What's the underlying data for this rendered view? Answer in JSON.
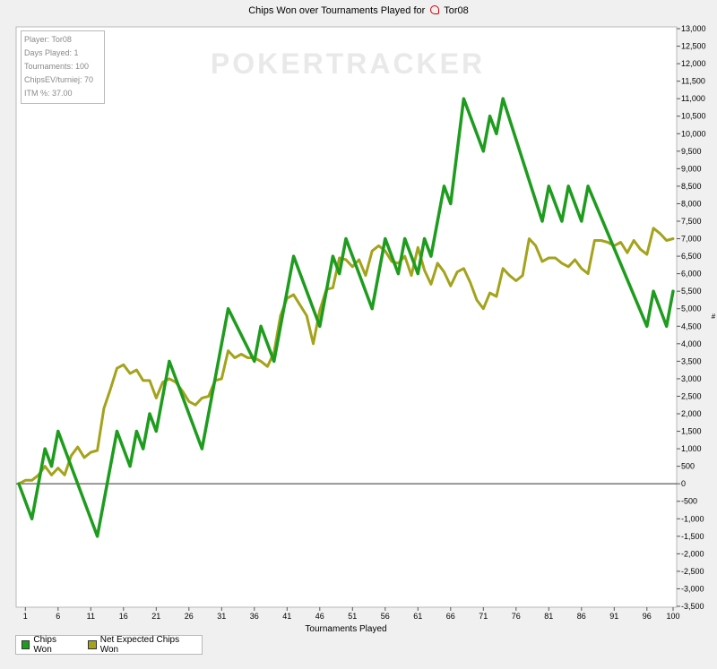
{
  "chart_data": {
    "type": "line",
    "title": "Chips Won over Tournaments Played for",
    "player_name": "Tor08",
    "xlabel": "Tournaments Played",
    "ylabel": "",
    "ylabel_symbol": "#",
    "xlim": [
      0,
      100
    ],
    "ylim": [
      -3500,
      13000
    ],
    "x_ticks": [
      1,
      6,
      11,
      16,
      21,
      26,
      31,
      36,
      41,
      46,
      51,
      56,
      61,
      66,
      71,
      76,
      81,
      86,
      91,
      96,
      100
    ],
    "y_ticks": [
      -3500,
      -3000,
      -2500,
      -2000,
      -1500,
      -1000,
      -500,
      0,
      500,
      1000,
      1500,
      2000,
      2500,
      3000,
      3500,
      4000,
      4500,
      5000,
      5500,
      6000,
      6500,
      7000,
      7500,
      8000,
      8500,
      9000,
      9500,
      10000,
      10500,
      11000,
      11500,
      12000,
      12500,
      13000
    ],
    "grid": false,
    "legend_position": "bottom-left",
    "watermark": "POKERTRACKER",
    "series": [
      {
        "name": "Chips Won",
        "color": "#1e9c1e",
        "points": [
          [
            0,
            0
          ],
          [
            2,
            -1000
          ],
          [
            4,
            1000
          ],
          [
            5,
            500
          ],
          [
            6,
            1500
          ],
          [
            12,
            -1500
          ],
          [
            15,
            1500
          ],
          [
            17,
            500
          ],
          [
            18,
            1500
          ],
          [
            19,
            1000
          ],
          [
            20,
            2000
          ],
          [
            21,
            1500
          ],
          [
            23,
            3500
          ],
          [
            28,
            1000
          ],
          [
            32,
            5000
          ],
          [
            36,
            3500
          ],
          [
            37,
            4500
          ],
          [
            39,
            3500
          ],
          [
            42,
            6500
          ],
          [
            46,
            4500
          ],
          [
            48,
            6500
          ],
          [
            49,
            6000
          ],
          [
            50,
            7000
          ],
          [
            54,
            5000
          ],
          [
            56,
            7000
          ],
          [
            58,
            6000
          ],
          [
            59,
            7000
          ],
          [
            61,
            6000
          ],
          [
            62,
            7000
          ],
          [
            63,
            6500
          ],
          [
            65,
            8500
          ],
          [
            66,
            8000
          ],
          [
            68,
            11000
          ],
          [
            71,
            9500
          ],
          [
            72,
            10500
          ],
          [
            73,
            10000
          ],
          [
            74,
            11000
          ],
          [
            80,
            7500
          ],
          [
            81,
            8500
          ],
          [
            83,
            7500
          ],
          [
            84,
            8500
          ],
          [
            86,
            7500
          ],
          [
            87,
            8500
          ],
          [
            96,
            4500
          ],
          [
            97,
            5500
          ],
          [
            99,
            4500
          ],
          [
            100,
            5500
          ]
        ]
      },
      {
        "name": "Net Expected Chips Won",
        "color": "#a3a31c",
        "points": [
          [
            0,
            0
          ],
          [
            1,
            100
          ],
          [
            2,
            100
          ],
          [
            3,
            250
          ],
          [
            4,
            500
          ],
          [
            5,
            250
          ],
          [
            6,
            450
          ],
          [
            7,
            250
          ],
          [
            8,
            800
          ],
          [
            9,
            1050
          ],
          [
            10,
            750
          ],
          [
            11,
            900
          ],
          [
            12,
            950
          ],
          [
            13,
            2150
          ],
          [
            14,
            2700
          ],
          [
            15,
            3300
          ],
          [
            16,
            3400
          ],
          [
            17,
            3150
          ],
          [
            18,
            3250
          ],
          [
            19,
            2950
          ],
          [
            20,
            2950
          ],
          [
            21,
            2450
          ],
          [
            22,
            2900
          ],
          [
            23,
            3000
          ],
          [
            24,
            2900
          ],
          [
            25,
            2650
          ],
          [
            26,
            2350
          ],
          [
            27,
            2250
          ],
          [
            28,
            2450
          ],
          [
            29,
            2500
          ],
          [
            30,
            2950
          ],
          [
            31,
            3000
          ],
          [
            32,
            3800
          ],
          [
            33,
            3600
          ],
          [
            34,
            3700
          ],
          [
            35,
            3600
          ],
          [
            36,
            3600
          ],
          [
            37,
            3500
          ],
          [
            38,
            3350
          ],
          [
            39,
            3750
          ],
          [
            40,
            4800
          ],
          [
            41,
            5300
          ],
          [
            42,
            5400
          ],
          [
            43,
            5100
          ],
          [
            44,
            4800
          ],
          [
            45,
            4000
          ],
          [
            46,
            4950
          ],
          [
            47,
            5550
          ],
          [
            48,
            5600
          ],
          [
            49,
            6450
          ],
          [
            50,
            6400
          ],
          [
            51,
            6200
          ],
          [
            52,
            6400
          ],
          [
            53,
            5950
          ],
          [
            54,
            6650
          ],
          [
            55,
            6800
          ],
          [
            56,
            6650
          ],
          [
            57,
            6350
          ],
          [
            58,
            6300
          ],
          [
            59,
            6500
          ],
          [
            60,
            5950
          ],
          [
            61,
            6750
          ],
          [
            62,
            6100
          ],
          [
            63,
            5700
          ],
          [
            64,
            6300
          ],
          [
            65,
            6050
          ],
          [
            66,
            5650
          ],
          [
            67,
            6050
          ],
          [
            68,
            6150
          ],
          [
            69,
            5750
          ],
          [
            70,
            5250
          ],
          [
            71,
            5000
          ],
          [
            72,
            5450
          ],
          [
            73,
            5350
          ],
          [
            74,
            6150
          ],
          [
            75,
            5950
          ],
          [
            76,
            5800
          ],
          [
            77,
            5950
          ],
          [
            78,
            7000
          ],
          [
            79,
            6800
          ],
          [
            80,
            6350
          ],
          [
            81,
            6450
          ],
          [
            82,
            6450
          ],
          [
            83,
            6300
          ],
          [
            84,
            6200
          ],
          [
            85,
            6400
          ],
          [
            86,
            6150
          ],
          [
            87,
            6000
          ],
          [
            88,
            6950
          ],
          [
            89,
            6950
          ],
          [
            90,
            6900
          ],
          [
            91,
            6800
          ],
          [
            92,
            6900
          ],
          [
            93,
            6600
          ],
          [
            94,
            6950
          ],
          [
            95,
            6700
          ],
          [
            96,
            6550
          ],
          [
            97,
            7300
          ],
          [
            98,
            7150
          ],
          [
            99,
            6950
          ],
          [
            100,
            7000
          ]
        ]
      }
    ]
  },
  "info_box": [
    "Player: Tor08",
    "Days Played: 1",
    "Tournaments: 100",
    "ChipsEV/turniej: 70",
    "ITM %: 37.00"
  ],
  "colors": {
    "chips_won": "#1e9c1e",
    "net_expected": "#a3a31c",
    "background": "#ffffff",
    "frame": "#f0f0f0"
  },
  "legend": {
    "items": [
      "Chips Won",
      "Net Expected Chips Won"
    ]
  }
}
